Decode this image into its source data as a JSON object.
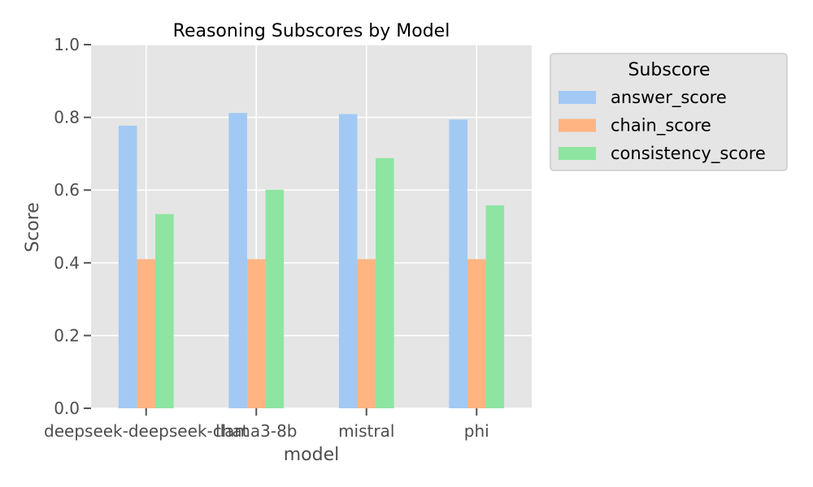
{
  "chart_data": {
    "type": "bar",
    "title": "Reasoning Subscores by Model",
    "xlabel": "model",
    "ylabel": "Score",
    "ylim": [
      0,
      1.0
    ],
    "yticks": [
      "0.0",
      "0.2",
      "0.4",
      "0.6",
      "0.8",
      "1.0"
    ],
    "grid": true,
    "legend_position": "outside-top-right",
    "legend_title": "Subscore",
    "categories": [
      "deepseek-deepseek-chat",
      "llama3-8b",
      "mistral",
      "phi"
    ],
    "series": [
      {
        "name": "answer_score",
        "color": "#a1c9f4",
        "values": [
          0.777,
          0.812,
          0.809,
          0.794
        ]
      },
      {
        "name": "chain_score",
        "color": "#ffb482",
        "values": [
          0.41,
          0.41,
          0.41,
          0.41
        ]
      },
      {
        "name": "consistency_score",
        "color": "#8de5a1",
        "values": [
          0.534,
          0.601,
          0.688,
          0.558
        ]
      }
    ],
    "colors": {
      "plot_background": "#e5e5e5",
      "grid": "#ffffff",
      "legend_background": "#e5e5e5",
      "legend_border": "#cccccc"
    }
  }
}
